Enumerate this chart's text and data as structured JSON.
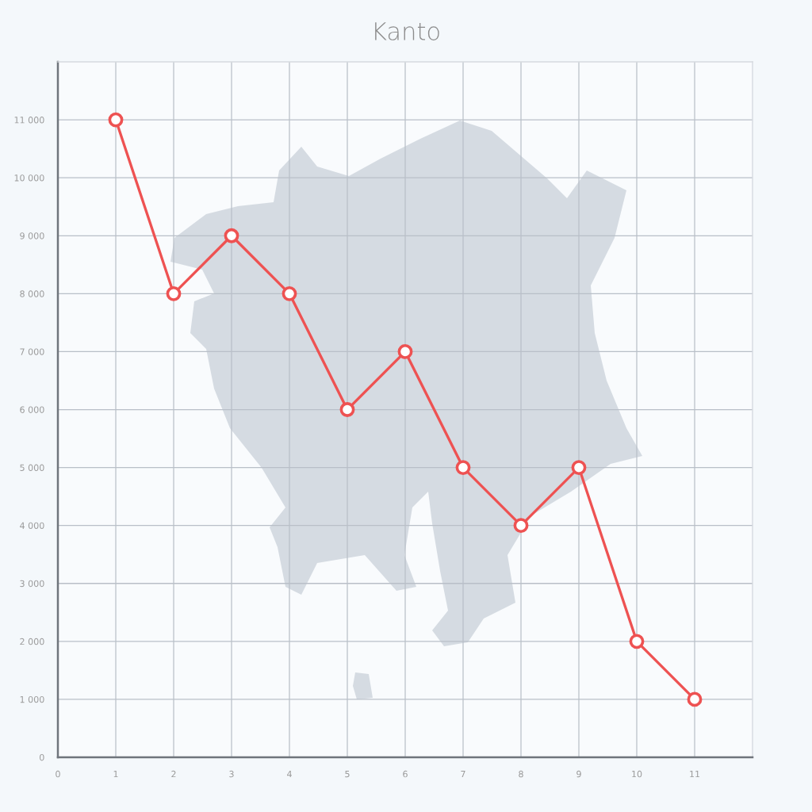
{
  "chart_data": {
    "type": "line",
    "title": "Kanto",
    "x": [
      1,
      2,
      3,
      4,
      5,
      6,
      7,
      8,
      9,
      10,
      11
    ],
    "series": [
      {
        "color": "#ee5252",
        "values": [
          11000,
          8000,
          9000,
          8000,
          6000,
          7000,
          5000,
          4000,
          5000,
          2000,
          1000
        ]
      }
    ],
    "xlim": [
      0,
      12
    ],
    "xticks": [
      0,
      1,
      2,
      3,
      4,
      5,
      6,
      7,
      8,
      9,
      10,
      11
    ],
    "ylim": [
      0,
      12000
    ],
    "yticks": [
      0,
      {
        "value": 1000,
        "label": "1 000"
      },
      {
        "value": 2000,
        "label": "2 000"
      },
      {
        "value": 3000,
        "label": "3 000"
      },
      {
        "value": 4000,
        "label": "4 000"
      },
      {
        "value": 5000,
        "label": "5 000"
      },
      {
        "value": 6000,
        "label": "6 000"
      },
      {
        "value": 7000,
        "label": "7 000"
      },
      {
        "value": 8000,
        "label": "8 000"
      },
      {
        "value": 9000,
        "label": "9 000"
      },
      {
        "value": 10000,
        "label": "10 000"
      },
      {
        "value": 11000,
        "label": "11 000"
      }
    ],
    "grid": true,
    "marker": "circle",
    "line_style": "solid"
  }
}
